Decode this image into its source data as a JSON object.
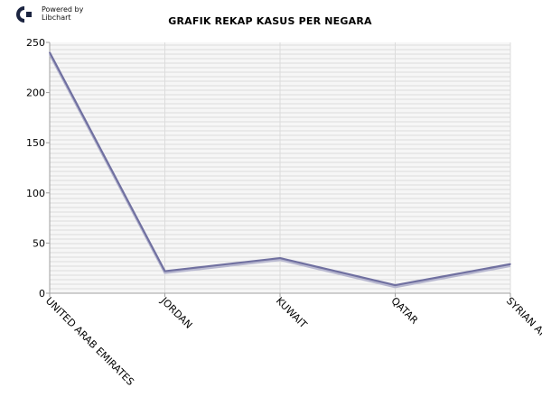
{
  "branding": {
    "line1": "Powered by",
    "line2": "Libchart"
  },
  "colors": {
    "line": "#7070a0",
    "line_shadow": "#b8b8d0",
    "grid": "#dcdcdc",
    "axis": "#a0a0a0",
    "plot_bg": "#f6f6f6"
  },
  "chart_data": {
    "type": "line",
    "title": "GRAFIK REKAP KASUS PER NEGARA",
    "xlabel": "",
    "ylabel": "",
    "categories": [
      "UNITED ARAB EMIRATES",
      "JORDAN",
      "KUWAIT",
      "QATAR",
      "SYRIAN ARAB REPUBLIC"
    ],
    "values": [
      240,
      22,
      35,
      8,
      29
    ],
    "ylim": [
      0,
      250
    ],
    "yticks": [
      0,
      50,
      100,
      150,
      200,
      250
    ],
    "grid": true,
    "legend": "none"
  }
}
